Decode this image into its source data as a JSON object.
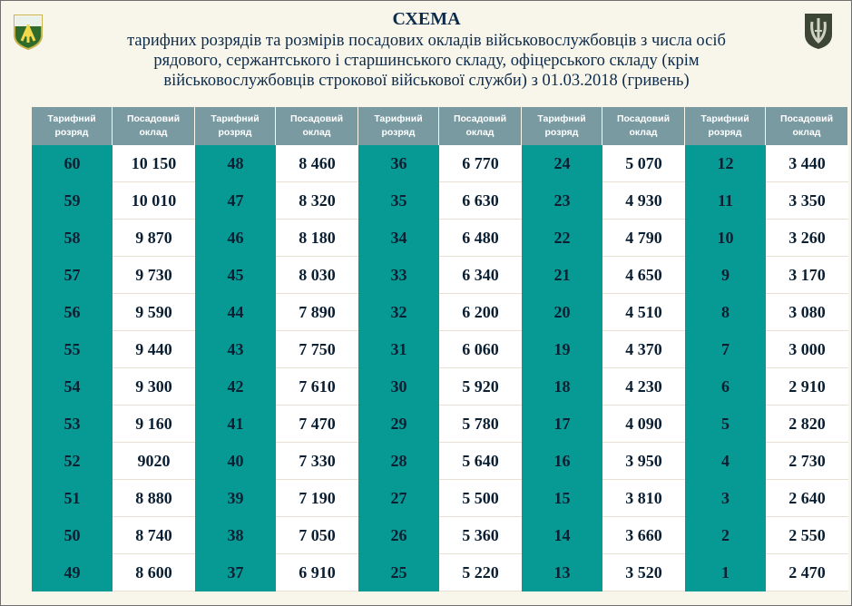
{
  "header": {
    "title": "СХЕМА",
    "subtitle_line1": "тарифних розрядів та розмірів посадових окладів військовослужбовців з числа осіб",
    "subtitle_line2": "рядового, сержантського і старшинського складу, офіцерського складу (крім",
    "subtitle_line3": "військовослужбовців строкової військової служби) з 01.03.2018 (гривень)"
  },
  "icons": {
    "left_logo": "ground-forces-emblem-icon",
    "right_logo": "armed-forces-trident-icon"
  },
  "columns": {
    "grade_header": "Тарифний розряд",
    "salary_header": "Посадовий оклад"
  },
  "colors": {
    "grade_column": "#079a94",
    "header_row": "#7a9aa2",
    "salary_column": "#ffffff",
    "text": "#0b1f33"
  },
  "table": {
    "groups": [
      {
        "rows": [
          {
            "grade": "60",
            "salary": "10 150"
          },
          {
            "grade": "59",
            "salary": "10 010"
          },
          {
            "grade": "58",
            "salary": "9 870"
          },
          {
            "grade": "57",
            "salary": "9 730"
          },
          {
            "grade": "56",
            "salary": "9 590"
          },
          {
            "grade": "55",
            "salary": "9 440"
          },
          {
            "grade": "54",
            "salary": "9 300"
          },
          {
            "grade": "53",
            "salary": "9 160"
          },
          {
            "grade": "52",
            "salary": "9020"
          },
          {
            "grade": "51",
            "salary": "8 880"
          },
          {
            "grade": "50",
            "salary": "8 740"
          },
          {
            "grade": "49",
            "salary": "8 600"
          }
        ]
      },
      {
        "rows": [
          {
            "grade": "48",
            "salary": "8 460"
          },
          {
            "grade": "47",
            "salary": "8 320"
          },
          {
            "grade": "46",
            "salary": "8 180"
          },
          {
            "grade": "45",
            "salary": "8 030"
          },
          {
            "grade": "44",
            "salary": "7 890"
          },
          {
            "grade": "43",
            "salary": "7 750"
          },
          {
            "grade": "42",
            "salary": "7 610"
          },
          {
            "grade": "41",
            "salary": "7 470"
          },
          {
            "grade": "40",
            "salary": "7 330"
          },
          {
            "grade": "39",
            "salary": "7 190"
          },
          {
            "grade": "38",
            "salary": "7 050"
          },
          {
            "grade": "37",
            "salary": "6 910"
          }
        ]
      },
      {
        "rows": [
          {
            "grade": "36",
            "salary": "6 770"
          },
          {
            "grade": "35",
            "salary": "6 630"
          },
          {
            "grade": "34",
            "salary": "6 480"
          },
          {
            "grade": "33",
            "salary": "6 340"
          },
          {
            "grade": "32",
            "salary": "6 200"
          },
          {
            "grade": "31",
            "salary": "6 060"
          },
          {
            "grade": "30",
            "salary": "5 920"
          },
          {
            "grade": "29",
            "salary": "5 780"
          },
          {
            "grade": "28",
            "salary": "5 640"
          },
          {
            "grade": "27",
            "salary": "5 500"
          },
          {
            "grade": "26",
            "salary": "5 360"
          },
          {
            "grade": "25",
            "salary": "5 220"
          }
        ]
      },
      {
        "rows": [
          {
            "grade": "24",
            "salary": "5 070"
          },
          {
            "grade": "23",
            "salary": "4 930"
          },
          {
            "grade": "22",
            "salary": "4 790"
          },
          {
            "grade": "21",
            "salary": "4 650"
          },
          {
            "grade": "20",
            "salary": "4 510"
          },
          {
            "grade": "19",
            "salary": "4 370"
          },
          {
            "grade": "18",
            "salary": "4 230"
          },
          {
            "grade": "17",
            "salary": "4 090"
          },
          {
            "grade": "16",
            "salary": "3 950"
          },
          {
            "grade": "15",
            "salary": "3 810"
          },
          {
            "grade": "14",
            "salary": "3 660"
          },
          {
            "grade": "13",
            "salary": "3 520"
          }
        ]
      },
      {
        "rows": [
          {
            "grade": "12",
            "salary": "3 440"
          },
          {
            "grade": "11",
            "salary": "3 350"
          },
          {
            "grade": "10",
            "salary": "3 260"
          },
          {
            "grade": "9",
            "salary": "3 170"
          },
          {
            "grade": "8",
            "salary": "3 080"
          },
          {
            "grade": "7",
            "salary": "3 000"
          },
          {
            "grade": "6",
            "salary": "2 910"
          },
          {
            "grade": "5",
            "salary": "2 820"
          },
          {
            "grade": "4",
            "salary": "2 730"
          },
          {
            "grade": "3",
            "salary": "2 640"
          },
          {
            "grade": "2",
            "salary": "2 550"
          },
          {
            "grade": "1",
            "salary": "2 470"
          }
        ]
      }
    ]
  }
}
